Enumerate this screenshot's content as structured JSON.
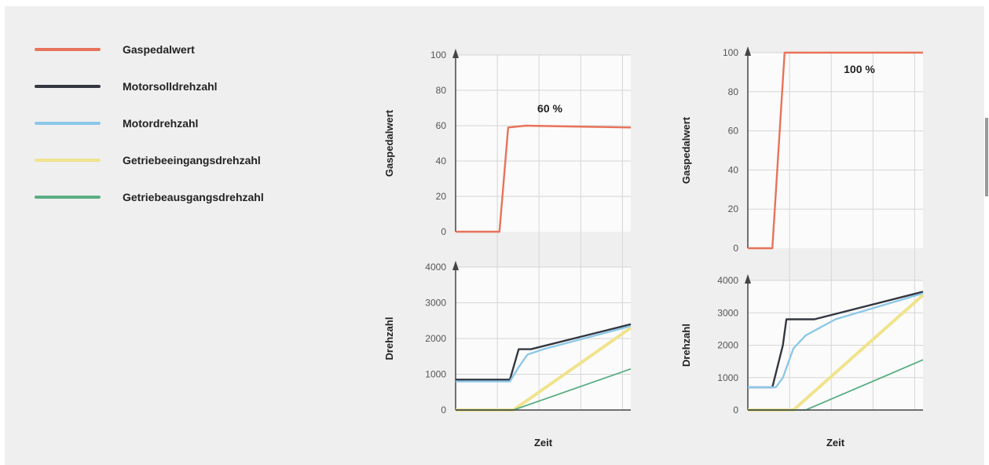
{
  "legend": [
    {
      "label": "Gaspedalwert",
      "color": "#e8735a"
    },
    {
      "label": "Motorsolldrehzahl",
      "color": "#333740"
    },
    {
      "label": "Motordrehzahl",
      "color": "#8cc8e8"
    },
    {
      "label": "Getriebeeingangsdrehzahl",
      "color": "#f0e38c"
    },
    {
      "label": "Getriebeausgangsdrehzahl",
      "color": "#5aae84"
    }
  ],
  "chart_data": [
    {
      "type": "line",
      "annotation": "60 %",
      "xlabel": "Zeit",
      "top": {
        "ylabel": "Gaspedalwert",
        "ylim": [
          0,
          100
        ],
        "ticks": [
          0,
          20,
          40,
          60,
          80,
          100
        ],
        "series": [
          {
            "name": "Gaspedalwert",
            "points": [
              [
                0,
                0
              ],
              [
                0.25,
                0
              ],
              [
                0.3,
                59
              ],
              [
                0.4,
                60
              ],
              [
                1.0,
                59
              ]
            ]
          }
        ]
      },
      "bottom": {
        "ylabel": "Drehzahl",
        "ylim": [
          0,
          4000
        ],
        "ticks": [
          0,
          1000,
          2000,
          3000,
          4000
        ],
        "series": [
          {
            "name": "Motorsolldrehzahl",
            "points": [
              [
                0,
                850
              ],
              [
                0.31,
                850
              ],
              [
                0.36,
                1700
              ],
              [
                0.43,
                1700
              ],
              [
                1.0,
                2400
              ]
            ]
          },
          {
            "name": "Motordrehzahl",
            "points": [
              [
                0,
                800
              ],
              [
                0.31,
                800
              ],
              [
                0.36,
                1200
              ],
              [
                0.41,
                1550
              ],
              [
                0.5,
                1700
              ],
              [
                1.0,
                2350
              ]
            ]
          },
          {
            "name": "Getriebeeingangsdrehzahl",
            "points": [
              [
                0,
                0
              ],
              [
                0.33,
                0
              ],
              [
                1.0,
                2300
              ]
            ]
          },
          {
            "name": "Getriebeausgangsdrehzahl",
            "points": [
              [
                0,
                0
              ],
              [
                0.33,
                0
              ],
              [
                1.0,
                1150
              ]
            ]
          }
        ]
      }
    },
    {
      "type": "line",
      "annotation": "100 %",
      "xlabel": "Zeit",
      "top": {
        "ylabel": "Gaspedalwert",
        "ylim": [
          0,
          100
        ],
        "ticks": [
          0,
          20,
          40,
          60,
          80,
          100
        ],
        "series": [
          {
            "name": "Gaspedalwert",
            "points": [
              [
                0,
                0
              ],
              [
                0.14,
                0
              ],
              [
                0.21,
                100
              ],
              [
                1.0,
                100
              ]
            ]
          }
        ]
      },
      "bottom": {
        "ylabel": "Drehzahl",
        "ylim": [
          0,
          4000
        ],
        "ticks": [
          0,
          1000,
          2000,
          3000,
          4000
        ],
        "series": [
          {
            "name": "Motorsolldrehzahl",
            "points": [
              [
                0,
                700
              ],
              [
                0.14,
                700
              ],
              [
                0.2,
                2000
              ],
              [
                0.22,
                2800
              ],
              [
                0.38,
                2800
              ],
              [
                1.0,
                3650
              ]
            ]
          },
          {
            "name": "Motordrehzahl",
            "points": [
              [
                0,
                700
              ],
              [
                0.16,
                700
              ],
              [
                0.2,
                1000
              ],
              [
                0.26,
                1900
              ],
              [
                0.33,
                2300
              ],
              [
                0.5,
                2800
              ],
              [
                1.0,
                3600
              ]
            ]
          },
          {
            "name": "Getriebeeingangsdrehzahl",
            "points": [
              [
                0,
                0
              ],
              [
                0.26,
                0
              ],
              [
                1.0,
                3550
              ]
            ]
          },
          {
            "name": "Getriebeausgangsdrehzahl",
            "points": [
              [
                0,
                0
              ],
              [
                0.33,
                0
              ],
              [
                1.0,
                1550
              ]
            ]
          }
        ]
      }
    }
  ]
}
